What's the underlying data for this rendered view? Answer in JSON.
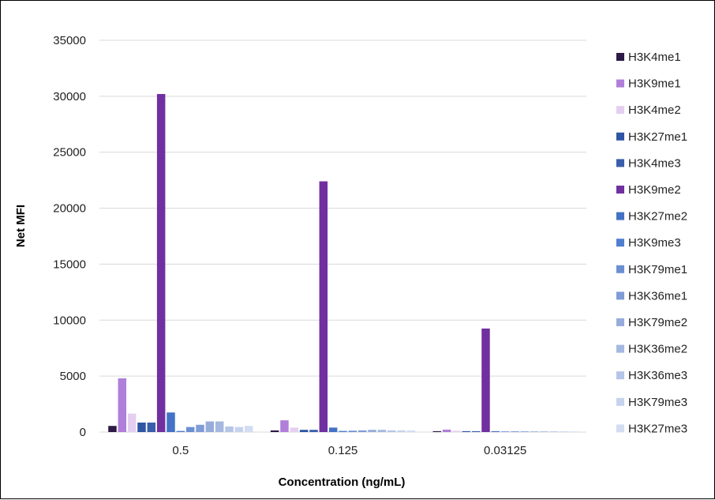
{
  "chart_data": {
    "type": "bar",
    "xlabel": "Concentration (ng/mL)",
    "ylabel": "Net MFI",
    "ylim": [
      0,
      35000
    ],
    "yticks": [
      "35000",
      "30000",
      "25000",
      "20000",
      "15000",
      "10000",
      "5000",
      "0"
    ],
    "categories": [
      "0.5",
      "0.125",
      "0.03125"
    ],
    "grid": true,
    "legend_position": "right",
    "series": [
      {
        "name": "H3K4me1",
        "color": "#2e1a47",
        "values": [
          550,
          150,
          80
        ]
      },
      {
        "name": "H3K9me1",
        "color": "#b07fd9",
        "values": [
          4800,
          1050,
          220
        ]
      },
      {
        "name": "H3K4me2",
        "color": "#e4cff0",
        "values": [
          1650,
          400,
          120
        ]
      },
      {
        "name": "H3K27me1",
        "color": "#2f55a4",
        "values": [
          850,
          200,
          80
        ]
      },
      {
        "name": "H3K4me3",
        "color": "#3a5eab",
        "values": [
          850,
          200,
          80
        ]
      },
      {
        "name": "H3K9me2",
        "color": "#7030a0",
        "values": [
          30200,
          22400,
          9250
        ]
      },
      {
        "name": "H3K27me2",
        "color": "#4472c4",
        "values": [
          1750,
          400,
          80
        ]
      },
      {
        "name": "H3K9me3",
        "color": "#4f7fcf",
        "values": [
          100,
          100,
          50
        ]
      },
      {
        "name": "H3K79me1",
        "color": "#6c8fd3",
        "values": [
          450,
          120,
          60
        ]
      },
      {
        "name": "H3K36me1",
        "color": "#7f9cd6",
        "values": [
          650,
          150,
          60
        ]
      },
      {
        "name": "H3K79me2",
        "color": "#97acdb",
        "values": [
          950,
          200,
          60
        ]
      },
      {
        "name": "H3K36me2",
        "color": "#a4b8e0",
        "values": [
          950,
          200,
          60
        ]
      },
      {
        "name": "H3K36me3",
        "color": "#b4c5e7",
        "values": [
          500,
          150,
          60
        ]
      },
      {
        "name": "H3K79me3",
        "color": "#c5d3ee",
        "values": [
          450,
          150,
          60
        ]
      },
      {
        "name": "H3K27me3",
        "color": "#d3ddf2",
        "values": [
          550,
          150,
          60
        ]
      }
    ]
  }
}
